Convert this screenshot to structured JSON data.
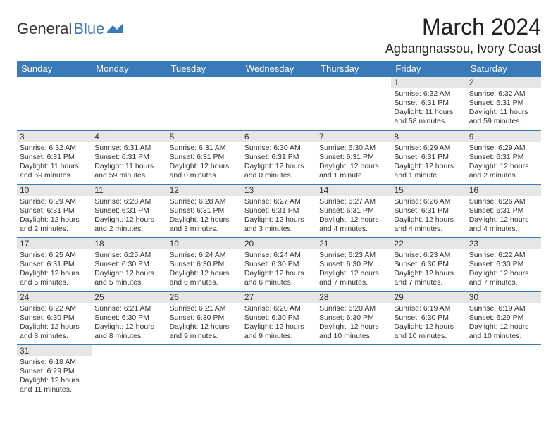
{
  "logo": {
    "text1": "General",
    "text2": "Blue"
  },
  "title": "March 2024",
  "location": "Agbangnassou, Ivory Coast",
  "colors": {
    "header_bg": "#3a7ab8",
    "header_fg": "#ffffff",
    "daynum_bg": "#e6e6e6",
    "row_border": "#3a7ab8",
    "logo_accent": "#3a7ab8"
  },
  "weekdays": [
    "Sunday",
    "Monday",
    "Tuesday",
    "Wednesday",
    "Thursday",
    "Friday",
    "Saturday"
  ],
  "weeks": [
    [
      null,
      null,
      null,
      null,
      null,
      {
        "n": "1",
        "sr": "6:32 AM",
        "ss": "6:31 PM",
        "dl": "11 hours and 58 minutes."
      },
      {
        "n": "2",
        "sr": "6:32 AM",
        "ss": "6:31 PM",
        "dl": "11 hours and 59 minutes."
      }
    ],
    [
      {
        "n": "3",
        "sr": "6:32 AM",
        "ss": "6:31 PM",
        "dl": "11 hours and 59 minutes."
      },
      {
        "n": "4",
        "sr": "6:31 AM",
        "ss": "6:31 PM",
        "dl": "11 hours and 59 minutes."
      },
      {
        "n": "5",
        "sr": "6:31 AM",
        "ss": "6:31 PM",
        "dl": "12 hours and 0 minutes."
      },
      {
        "n": "6",
        "sr": "6:30 AM",
        "ss": "6:31 PM",
        "dl": "12 hours and 0 minutes."
      },
      {
        "n": "7",
        "sr": "6:30 AM",
        "ss": "6:31 PM",
        "dl": "12 hours and 1 minute."
      },
      {
        "n": "8",
        "sr": "6:29 AM",
        "ss": "6:31 PM",
        "dl": "12 hours and 1 minute."
      },
      {
        "n": "9",
        "sr": "6:29 AM",
        "ss": "6:31 PM",
        "dl": "12 hours and 2 minutes."
      }
    ],
    [
      {
        "n": "10",
        "sr": "6:29 AM",
        "ss": "6:31 PM",
        "dl": "12 hours and 2 minutes."
      },
      {
        "n": "11",
        "sr": "6:28 AM",
        "ss": "6:31 PM",
        "dl": "12 hours and 2 minutes."
      },
      {
        "n": "12",
        "sr": "6:28 AM",
        "ss": "6:31 PM",
        "dl": "12 hours and 3 minutes."
      },
      {
        "n": "13",
        "sr": "6:27 AM",
        "ss": "6:31 PM",
        "dl": "12 hours and 3 minutes."
      },
      {
        "n": "14",
        "sr": "6:27 AM",
        "ss": "6:31 PM",
        "dl": "12 hours and 4 minutes."
      },
      {
        "n": "15",
        "sr": "6:26 AM",
        "ss": "6:31 PM",
        "dl": "12 hours and 4 minutes."
      },
      {
        "n": "16",
        "sr": "6:26 AM",
        "ss": "6:31 PM",
        "dl": "12 hours and 4 minutes."
      }
    ],
    [
      {
        "n": "17",
        "sr": "6:25 AM",
        "ss": "6:31 PM",
        "dl": "12 hours and 5 minutes."
      },
      {
        "n": "18",
        "sr": "6:25 AM",
        "ss": "6:30 PM",
        "dl": "12 hours and 5 minutes."
      },
      {
        "n": "19",
        "sr": "6:24 AM",
        "ss": "6:30 PM",
        "dl": "12 hours and 6 minutes."
      },
      {
        "n": "20",
        "sr": "6:24 AM",
        "ss": "6:30 PM",
        "dl": "12 hours and 6 minutes."
      },
      {
        "n": "21",
        "sr": "6:23 AM",
        "ss": "6:30 PM",
        "dl": "12 hours and 7 minutes."
      },
      {
        "n": "22",
        "sr": "6:23 AM",
        "ss": "6:30 PM",
        "dl": "12 hours and 7 minutes."
      },
      {
        "n": "23",
        "sr": "6:22 AM",
        "ss": "6:30 PM",
        "dl": "12 hours and 7 minutes."
      }
    ],
    [
      {
        "n": "24",
        "sr": "6:22 AM",
        "ss": "6:30 PM",
        "dl": "12 hours and 8 minutes."
      },
      {
        "n": "25",
        "sr": "6:21 AM",
        "ss": "6:30 PM",
        "dl": "12 hours and 8 minutes."
      },
      {
        "n": "26",
        "sr": "6:21 AM",
        "ss": "6:30 PM",
        "dl": "12 hours and 9 minutes."
      },
      {
        "n": "27",
        "sr": "6:20 AM",
        "ss": "6:30 PM",
        "dl": "12 hours and 9 minutes."
      },
      {
        "n": "28",
        "sr": "6:20 AM",
        "ss": "6:30 PM",
        "dl": "12 hours and 10 minutes."
      },
      {
        "n": "29",
        "sr": "6:19 AM",
        "ss": "6:30 PM",
        "dl": "12 hours and 10 minutes."
      },
      {
        "n": "30",
        "sr": "6:19 AM",
        "ss": "6:29 PM",
        "dl": "12 hours and 10 minutes."
      }
    ],
    [
      {
        "n": "31",
        "sr": "6:18 AM",
        "ss": "6:29 PM",
        "dl": "12 hours and 11 minutes."
      },
      null,
      null,
      null,
      null,
      null,
      null
    ]
  ],
  "labels": {
    "sunrise": "Sunrise:",
    "sunset": "Sunset:",
    "daylight": "Daylight:"
  }
}
